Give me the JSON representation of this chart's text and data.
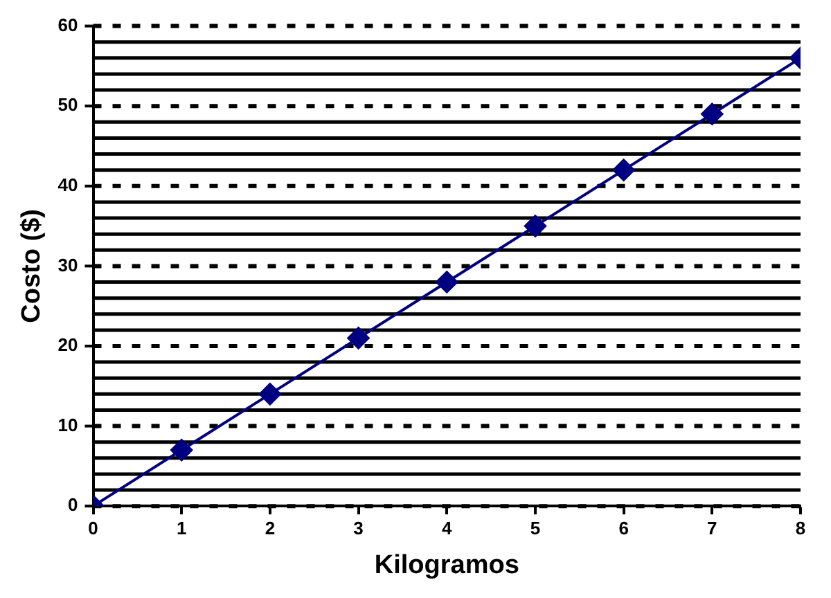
{
  "chart_data": {
    "type": "line",
    "xlabel": "Kilogramos",
    "ylabel": "Costo ($)",
    "x": [
      0,
      1,
      2,
      3,
      4,
      5,
      6,
      7,
      8
    ],
    "series": [
      {
        "color": "#000080",
        "values": [
          0,
          7,
          14,
          21,
          28,
          35,
          42,
          49,
          56
        ]
      }
    ],
    "xlim": [
      0,
      8
    ],
    "xticks": [
      0,
      1,
      2,
      3,
      4,
      5,
      6,
      7,
      8
    ],
    "ylim": [
      0,
      60
    ],
    "yticks": [
      0,
      {
        "value": 2,
        "label": null
      },
      {
        "value": 4,
        "label": null
      },
      {
        "value": 6,
        "label": null
      },
      {
        "value": 8,
        "label": null
      },
      10,
      {
        "value": 12,
        "label": null
      },
      {
        "value": 14,
        "label": null
      },
      {
        "value": 16,
        "label": null
      },
      {
        "value": 18,
        "label": null
      },
      20,
      {
        "value": 22,
        "label": null
      },
      {
        "value": 24,
        "label": null
      },
      {
        "value": 26,
        "label": null
      },
      {
        "value": 28,
        "label": null
      },
      30,
      {
        "value": 32,
        "label": null
      },
      {
        "value": 34,
        "label": null
      },
      {
        "value": 36,
        "label": null
      },
      {
        "value": 38,
        "label": null
      },
      40,
      {
        "value": 42,
        "label": null
      },
      {
        "value": 44,
        "label": null
      },
      {
        "value": 46,
        "label": null
      },
      {
        "value": 48,
        "label": null
      },
      50,
      {
        "value": 52,
        "label": null
      },
      {
        "value": 54,
        "label": null
      },
      {
        "value": 56,
        "label": null
      },
      {
        "value": 58,
        "label": null
      },
      60
    ],
    "grid": "y",
    "legend": false,
    "marker": "diamond",
    "line_style": "solid"
  }
}
